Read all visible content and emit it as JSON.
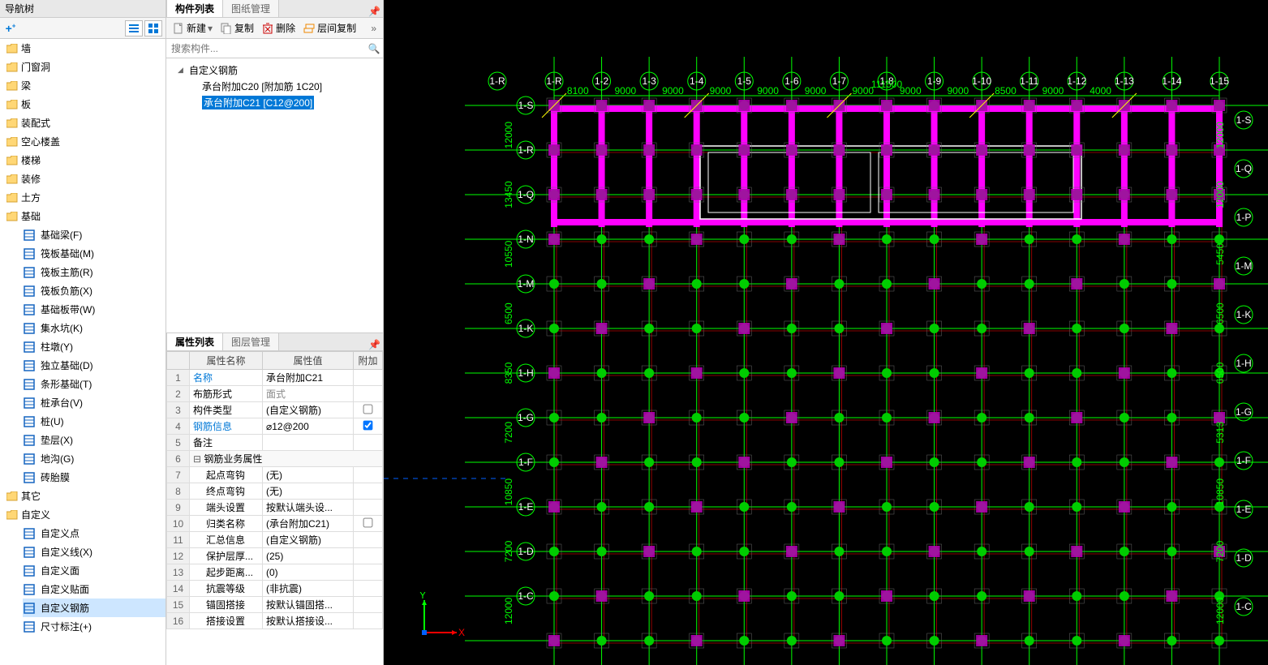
{
  "nav": {
    "title": "导航树",
    "categories": [
      {
        "label": "墙"
      },
      {
        "label": "门窗洞"
      },
      {
        "label": "梁"
      },
      {
        "label": "板"
      },
      {
        "label": "装配式"
      },
      {
        "label": "空心楼盖"
      },
      {
        "label": "楼梯"
      },
      {
        "label": "装修"
      },
      {
        "label": "土方"
      },
      {
        "label": "基础",
        "expanded": true,
        "children": [
          {
            "label": "基础梁(F)",
            "icon": "beam",
            "color": "#1565c0"
          },
          {
            "label": "筏板基础(M)",
            "icon": "slab",
            "color": "#1565c0"
          },
          {
            "label": "筏板主筋(R)",
            "icon": "rebar",
            "color": "#1565c0"
          },
          {
            "label": "筏板负筋(X)",
            "icon": "rebar",
            "color": "#1565c0"
          },
          {
            "label": "基础板带(W)",
            "icon": "strip",
            "color": "#1565c0"
          },
          {
            "label": "集水坑(K)",
            "icon": "pit",
            "color": "#1565c0"
          },
          {
            "label": "柱墩(Y)",
            "icon": "pier",
            "color": "#1565c0"
          },
          {
            "label": "独立基础(D)",
            "icon": "iso",
            "color": "#1565c0"
          },
          {
            "label": "条形基础(T)",
            "icon": "strip2",
            "color": "#1565c0"
          },
          {
            "label": "桩承台(V)",
            "icon": "cap",
            "color": "#1565c0"
          },
          {
            "label": "桩(U)",
            "icon": "pile",
            "color": "#1565c0"
          },
          {
            "label": "垫层(X)",
            "icon": "bed",
            "color": "#1565c0"
          },
          {
            "label": "地沟(G)",
            "icon": "trench",
            "color": "#1565c0"
          },
          {
            "label": "砖胎膜",
            "icon": "brick",
            "color": "#1565c0"
          }
        ]
      },
      {
        "label": "其它"
      },
      {
        "label": "自定义",
        "expanded": true,
        "children": [
          {
            "label": "自定义点",
            "icon": "pt",
            "color": "#1565c0"
          },
          {
            "label": "自定义线(X)",
            "icon": "ln",
            "color": "#1565c0"
          },
          {
            "label": "自定义面",
            "icon": "ar",
            "color": "#1565c0"
          },
          {
            "label": "自定义贴面",
            "icon": "sf",
            "color": "#1565c0"
          },
          {
            "label": "自定义钢筋",
            "icon": "rb",
            "color": "#1565c0",
            "selected": true
          },
          {
            "label": "尺寸标注(+)",
            "icon": "dim",
            "color": "#1565c0"
          }
        ]
      }
    ]
  },
  "compList": {
    "tabs": [
      "构件列表",
      "图纸管理"
    ],
    "activeTab": 0,
    "toolbar": {
      "new": "新建",
      "copy": "复制",
      "delete": "删除",
      "floorCopy": "层间复制"
    },
    "searchPlaceholder": "搜索构件...",
    "root": {
      "label": "自定义钢筋",
      "children": [
        {
          "label": "承台附加C20 [附加筋 1C20]"
        },
        {
          "label": "承台附加C21 [C12@200]",
          "selected": true
        }
      ]
    }
  },
  "propList": {
    "tabs": [
      "属性列表",
      "图层管理"
    ],
    "activeTab": 0,
    "headers": [
      "",
      "属性名称",
      "属性值",
      "附加"
    ],
    "rows": [
      {
        "n": 1,
        "name": "名称",
        "value": "承台附加C21",
        "link": true
      },
      {
        "n": 2,
        "name": "布筋形式",
        "value": "面式",
        "dim": true
      },
      {
        "n": 3,
        "name": "构件类型",
        "value": "(自定义钢筋)",
        "chk": false
      },
      {
        "n": 4,
        "name": "钢筋信息",
        "value": "⌀12@200",
        "link": true,
        "chk": true
      },
      {
        "n": 5,
        "name": "备注"
      },
      {
        "n": 6,
        "name": "钢筋业务属性",
        "group": true
      },
      {
        "n": 7,
        "name": "起点弯钩",
        "value": "(无)",
        "indent": true
      },
      {
        "n": 8,
        "name": "终点弯钩",
        "value": "(无)",
        "indent": true
      },
      {
        "n": 9,
        "name": "端头设置",
        "value": "按默认端头设...",
        "indent": true
      },
      {
        "n": 10,
        "name": "归类名称",
        "value": "(承台附加C21)",
        "indent": true,
        "chk": false
      },
      {
        "n": 11,
        "name": "汇总信息",
        "value": "(自定义钢筋)",
        "indent": true
      },
      {
        "n": 12,
        "name": "保护层厚...",
        "value": "(25)",
        "indent": true
      },
      {
        "n": 13,
        "name": "起步距离...",
        "value": "(0)",
        "indent": true
      },
      {
        "n": 14,
        "name": "抗震等级",
        "value": "(非抗震)",
        "indent": true
      },
      {
        "n": 15,
        "name": "锚固搭接",
        "value": "按默认锚固搭...",
        "indent": true
      },
      {
        "n": 16,
        "name": "搭接设置",
        "value": "按默认搭接设...",
        "indent": true
      }
    ]
  },
  "viewport": {
    "background": "#000000",
    "grid": {
      "xLabels": [
        "1-R",
        "1-2",
        "1-3",
        "1-4",
        "1-5",
        "1-6",
        "1-7",
        "1-8",
        "1-9",
        "1-10",
        "1-11",
        "1-12",
        "1-13",
        "1-14",
        "1-15"
      ],
      "xLabelTop": "1-R",
      "yLabelsLeft": [
        "1-S",
        "1-R",
        "1-Q",
        "1-N",
        "1-M",
        "1-K",
        "1-H",
        "1-G",
        "1-F",
        "1-E",
        "1-D",
        "1-C"
      ],
      "yLabelsRight": [
        "1-S",
        "1-Q",
        "1-P",
        "1-M",
        "1-K",
        "1-H",
        "1-G",
        "1-F",
        "1-E",
        "1-D",
        "1-C"
      ],
      "dimsTop": [
        "8100",
        "9000",
        "9000",
        "9000",
        "9000",
        "9000",
        "9000",
        "9000",
        "9000",
        "8500",
        "9000",
        "4000"
      ],
      "dimTopTotal": "111500",
      "dimsLeft": [
        "12000",
        "13450",
        "10550",
        "6500",
        "8350",
        "7200",
        "10850",
        "7200",
        "12000"
      ],
      "dimsRight": [
        "12000",
        "12000",
        "5450",
        "6500",
        "6500",
        "5313",
        "10850",
        "7200",
        "12000"
      ],
      "color_gridline": "#00ff00",
      "color_secondary": "#ff0000",
      "color_beam": "#ff00ff",
      "color_axis": "#ffff00",
      "color_text": "#ffffff",
      "color_dim": "#00ff00",
      "color_blue": "#0060ff"
    },
    "pileColor": "#00cc00",
    "capColor": "#b000b0",
    "axisGizmo": {
      "x": "X",
      "y": "Y",
      "xColor": "#ff0000",
      "yColor": "#00ff00",
      "origin": "#0060ff"
    }
  }
}
